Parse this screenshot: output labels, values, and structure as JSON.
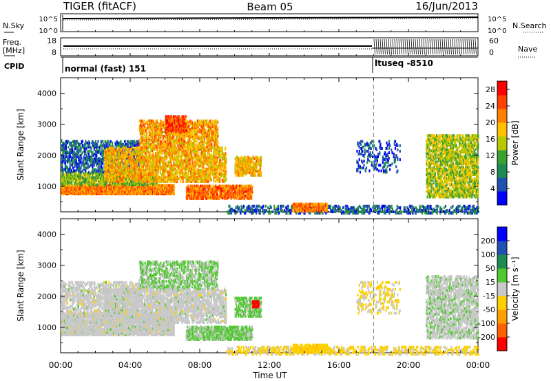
{
  "header": {
    "radar": "TIGER (fitACF)",
    "beam": "Beam 05",
    "date": "16/Jun/2013"
  },
  "strip": {
    "nsky_label": "N.Sky",
    "nsky_ticks": [
      "10^5",
      "10^0"
    ],
    "nsearch_label": "N.Search",
    "nsearch_ticks": [
      "10^5",
      "10^0"
    ],
    "freq_label_top": "Freq.",
    "freq_label_unit": "[MHz]",
    "freq_ticks": [
      "18",
      "8"
    ],
    "nave_label": "Nave",
    "nave_ticks": [
      "60",
      "0"
    ],
    "cpid_label": "CPID",
    "cpid_modes": [
      {
        "name": "normal (fast) 151",
        "start_hour": 0
      },
      {
        "name": "ltuseq -8510",
        "start_hour": 18
      }
    ]
  },
  "colors": {
    "power_scale": [
      "#0000ff",
      "#2050b0",
      "#1f8a50",
      "#3aa030",
      "#b8c800",
      "#ffc000",
      "#ff8000",
      "#ff4000",
      "#ff0000"
    ],
    "velocity_scale": [
      "#0000ff",
      "#2050b0",
      "#1f8a50",
      "#50c830",
      "#c8c8c8",
      "#ffd000",
      "#ffa000",
      "#ff6000",
      "#ff0000"
    ]
  },
  "chart_data": [
    {
      "type": "heatmap",
      "title": "",
      "xlabel": "Time UT",
      "ylabel": "Slant Range [km]",
      "xlim": [
        0,
        24
      ],
      "ylim": [
        180,
        4500
      ],
      "x_ticks": [
        "00:00",
        "04:00",
        "08:00",
        "12:00",
        "16:00",
        "20:00",
        "00:00"
      ],
      "y_ticks": [
        1000,
        2000,
        3000,
        4000
      ],
      "colorbar": {
        "label": "Power [dB]",
        "ticks": [
          4,
          8,
          12,
          16,
          20,
          24,
          28
        ],
        "range": [
          0,
          30
        ]
      },
      "regions": [
        {
          "t0": 0.0,
          "t1": 6.5,
          "r0": 800,
          "r1": 1100,
          "value": 22,
          "density": 0.85
        },
        {
          "t0": 0.0,
          "t1": 5.5,
          "r0": 1100,
          "r1": 1500,
          "value": 13,
          "density": 0.6
        },
        {
          "t0": 0.0,
          "t1": 4.5,
          "r0": 1500,
          "r1": 2500,
          "value": 6,
          "density": 0.35
        },
        {
          "t0": 2.5,
          "t1": 9.5,
          "r0": 1200,
          "r1": 2300,
          "value": 19,
          "density": 0.45
        },
        {
          "t0": 4.5,
          "t1": 9.0,
          "r0": 2300,
          "r1": 3200,
          "value": 20,
          "density": 0.45
        },
        {
          "t0": 6.0,
          "t1": 7.2,
          "r0": 2800,
          "r1": 3300,
          "value": 25,
          "density": 0.55
        },
        {
          "t0": 7.2,
          "t1": 11.0,
          "r0": 650,
          "r1": 1100,
          "value": 23,
          "density": 0.6
        },
        {
          "t0": 10.0,
          "t1": 11.5,
          "r0": 1400,
          "r1": 2000,
          "value": 19,
          "density": 0.55
        },
        {
          "t0": 9.5,
          "t1": 24.0,
          "r0": 180,
          "r1": 450,
          "value": 6,
          "density": 0.3
        },
        {
          "t0": 13.3,
          "t1": 15.3,
          "r0": 250,
          "r1": 500,
          "value": 22,
          "density": 0.7
        },
        {
          "t0": 17.0,
          "t1": 19.5,
          "r0": 1500,
          "r1": 2500,
          "value": 5,
          "density": 0.15
        },
        {
          "t0": 21.0,
          "t1": 24.0,
          "r0": 700,
          "r1": 2700,
          "value": 15,
          "density": 0.45
        }
      ]
    },
    {
      "type": "heatmap",
      "title": "",
      "xlabel": "Time UT",
      "ylabel": "Slant Range [km]",
      "xlim": [
        0,
        24
      ],
      "ylim": [
        180,
        4500
      ],
      "x_ticks": [
        "00:00",
        "04:00",
        "08:00",
        "12:00",
        "16:00",
        "20:00",
        "00:00"
      ],
      "y_ticks": [
        1000,
        2000,
        3000,
        4000
      ],
      "colorbar": {
        "label": "Velocity [m s⁻¹]",
        "ticks": [
          200,
          100,
          50,
          15,
          -15,
          -50,
          -100,
          -200
        ],
        "range": [
          -250,
          250
        ]
      },
      "regions": [
        {
          "t0": 0.0,
          "t1": 6.5,
          "r0": 800,
          "r1": 1500,
          "value": 0,
          "density": 0.7
        },
        {
          "t0": 0.0,
          "t1": 4.5,
          "r0": 1500,
          "r1": 2500,
          "value": 0,
          "density": 0.35
        },
        {
          "t0": 2.5,
          "t1": 9.5,
          "r0": 1200,
          "r1": 2300,
          "value": 0,
          "density": 0.45
        },
        {
          "t0": 4.5,
          "t1": 9.0,
          "r0": 2300,
          "r1": 3200,
          "value": 30,
          "density": 0.35
        },
        {
          "t0": 7.2,
          "t1": 11.0,
          "r0": 650,
          "r1": 1100,
          "value": 35,
          "density": 0.6
        },
        {
          "t0": 10.0,
          "t1": 11.5,
          "r0": 1400,
          "r1": 2000,
          "value": 40,
          "density": 0.5
        },
        {
          "t0": 11.0,
          "t1": 11.4,
          "r0": 1700,
          "r1": 1900,
          "value": -220,
          "density": 0.6
        },
        {
          "t0": 9.5,
          "t1": 24.0,
          "r0": 180,
          "r1": 450,
          "value": -40,
          "density": 0.3
        },
        {
          "t0": 13.3,
          "t1": 15.3,
          "r0": 250,
          "r1": 500,
          "value": -60,
          "density": 0.6
        },
        {
          "t0": 17.0,
          "t1": 19.5,
          "r0": 1500,
          "r1": 2500,
          "value": -30,
          "density": 0.15
        },
        {
          "t0": 21.0,
          "t1": 24.0,
          "r0": 700,
          "r1": 2700,
          "value": 10,
          "density": 0.45
        }
      ]
    }
  ]
}
